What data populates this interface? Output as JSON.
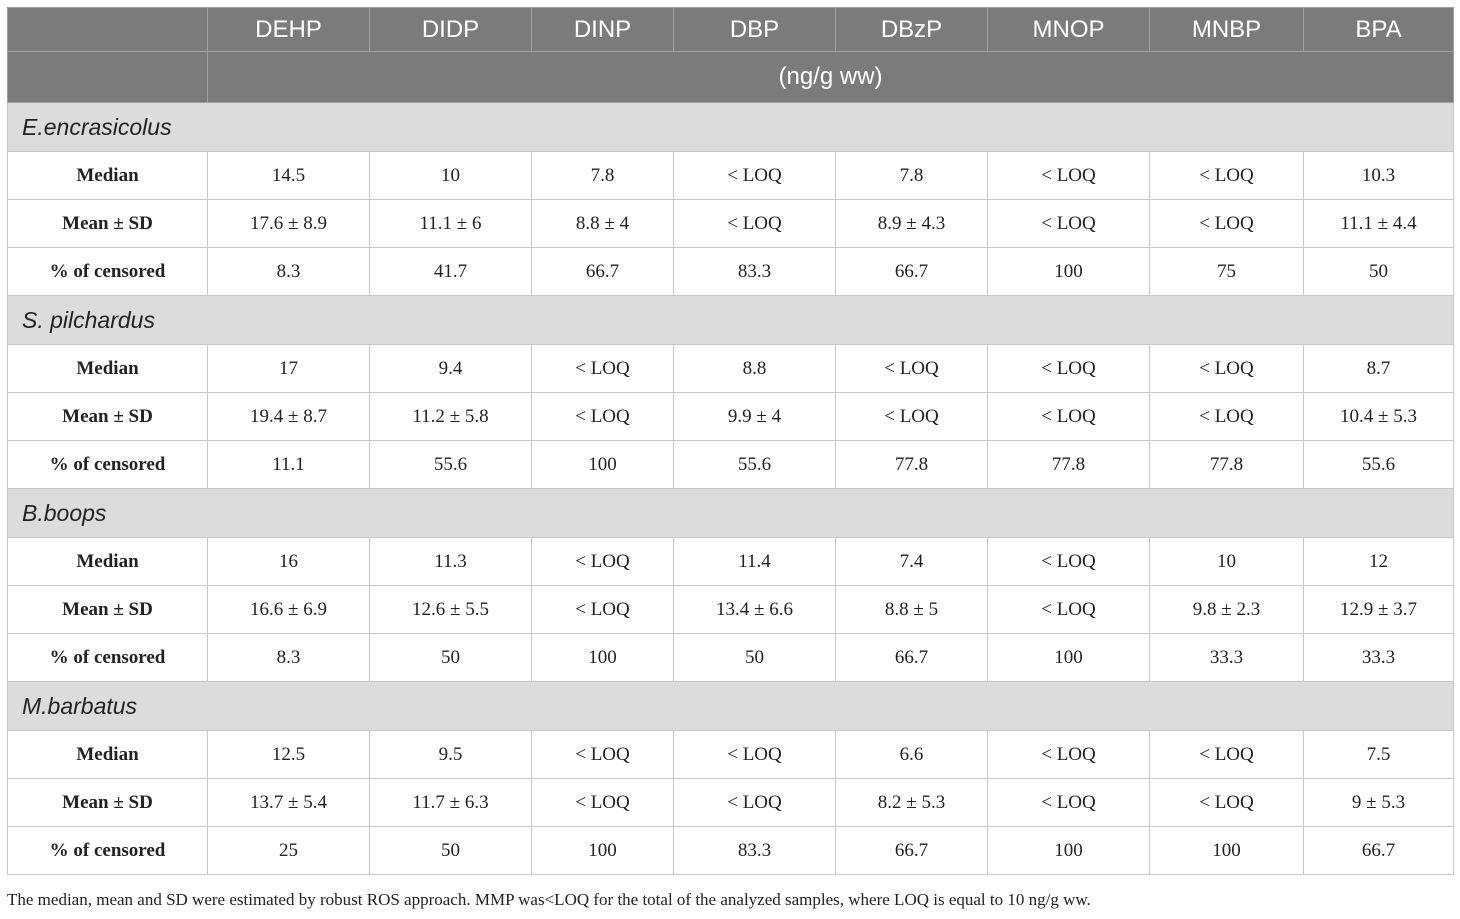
{
  "table": {
    "columns": [
      "DEHP",
      "DIDP",
      "DINP",
      "DBP",
      "DBzP",
      "MNOP",
      "MNBP",
      "BPA"
    ],
    "unit": "(ng/g ww)",
    "groups": [
      {
        "species": "E.encrasicolus",
        "rows": [
          {
            "label": "Median",
            "values": [
              "14.5",
              "10",
              "7.8",
              "< LOQ",
              "7.8",
              "< LOQ",
              "< LOQ",
              "10.3"
            ]
          },
          {
            "label": "Mean ± SD",
            "values": [
              "17.6 ± 8.9",
              "11.1 ± 6",
              "8.8 ± 4",
              "< LOQ",
              "8.9 ± 4.3",
              "< LOQ",
              "< LOQ",
              "11.1 ± 4.4"
            ]
          },
          {
            "label": "% of censored",
            "values": [
              "8.3",
              "41.7",
              "66.7",
              "83.3",
              "66.7",
              "100",
              "75",
              "50"
            ]
          }
        ]
      },
      {
        "species": "S. pilchardus",
        "rows": [
          {
            "label": "Median",
            "values": [
              "17",
              "9.4",
              "< LOQ",
              "8.8",
              "< LOQ",
              "< LOQ",
              "< LOQ",
              "8.7"
            ]
          },
          {
            "label": "Mean ± SD",
            "values": [
              "19.4 ± 8.7",
              "11.2 ± 5.8",
              "< LOQ",
              "9.9 ± 4",
              "< LOQ",
              "< LOQ",
              "< LOQ",
              "10.4 ± 5.3"
            ]
          },
          {
            "label": "% of censored",
            "values": [
              "11.1",
              "55.6",
              "100",
              "55.6",
              "77.8",
              "77.8",
              "77.8",
              "55.6"
            ]
          }
        ]
      },
      {
        "species": "B.boops",
        "rows": [
          {
            "label": "Median",
            "values": [
              "16",
              "11.3",
              "< LOQ",
              "11.4",
              "7.4",
              "< LOQ",
              "10",
              "12"
            ]
          },
          {
            "label": "Mean ± SD",
            "values": [
              "16.6 ± 6.9",
              "12.6 ± 5.5",
              "< LOQ",
              "13.4 ± 6.6",
              "8.8 ± 5",
              "< LOQ",
              "9.8 ± 2.3",
              "12.9 ± 3.7"
            ]
          },
          {
            "label": "% of censored",
            "values": [
              "8.3",
              "50",
              "100",
              "50",
              "66.7",
              "100",
              "33.3",
              "33.3"
            ]
          }
        ]
      },
      {
        "species": "M.barbatus",
        "rows": [
          {
            "label": "Median",
            "values": [
              "12.5",
              "9.5",
              "< LOQ",
              "< LOQ",
              "6.6",
              "< LOQ",
              "< LOQ",
              "7.5"
            ]
          },
          {
            "label": "Mean ± SD",
            "values": [
              "13.7 ± 5.4",
              "11.7 ± 6.3",
              "< LOQ",
              "< LOQ",
              "8.2 ± 5.3",
              "< LOQ",
              "< LOQ",
              "9 ± 5.3"
            ]
          },
          {
            "label": "% of censored",
            "values": [
              "25",
              "50",
              "100",
              "83.3",
              "66.7",
              "100",
              "100",
              "66.7"
            ]
          }
        ]
      }
    ]
  },
  "footnote": "The median, mean and SD were estimated by robust ROS approach. MMP was<LOQ for the total of the analyzed samples, where LOQ is equal to 10 ng/g ww."
}
